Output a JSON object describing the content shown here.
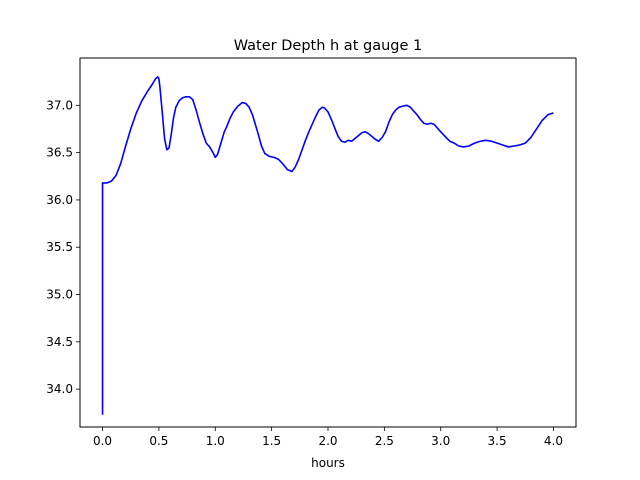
{
  "chart_data": {
    "type": "line",
    "title": "Water Depth h at gauge 1",
    "xlabel": "hours",
    "ylabel": "",
    "xlim": [
      -0.2,
      4.2
    ],
    "ylim": [
      33.6,
      37.5
    ],
    "grid": false,
    "xticks": [
      "0.0",
      "0.5",
      "1.0",
      "1.5",
      "2.0",
      "2.5",
      "3.0",
      "3.5",
      "4.0"
    ],
    "yticks": [
      "34.0",
      "34.5",
      "35.0",
      "35.5",
      "36.0",
      "36.5",
      "37.0"
    ],
    "series": [
      {
        "color": "#0000ff",
        "x": [
          0.0,
          0.0,
          0.01,
          0.04,
          0.08,
          0.12,
          0.16,
          0.2,
          0.25,
          0.3,
          0.35,
          0.4,
          0.44,
          0.47,
          0.49,
          0.5,
          0.51,
          0.53,
          0.55,
          0.57,
          0.59,
          0.61,
          0.63,
          0.65,
          0.68,
          0.71,
          0.74,
          0.77,
          0.8,
          0.83,
          0.86,
          0.89,
          0.92,
          0.95,
          0.98,
          1.0,
          1.02,
          1.05,
          1.08,
          1.1,
          1.13,
          1.16,
          1.2,
          1.24,
          1.27,
          1.3,
          1.33,
          1.36,
          1.38,
          1.41,
          1.44,
          1.48,
          1.52,
          1.56,
          1.6,
          1.64,
          1.68,
          1.71,
          1.74,
          1.77,
          1.8,
          1.83,
          1.86,
          1.89,
          1.92,
          1.95,
          1.97,
          2.0,
          2.03,
          2.06,
          2.09,
          2.12,
          2.15,
          2.18,
          2.21,
          2.24,
          2.27,
          2.3,
          2.33,
          2.36,
          2.39,
          2.42,
          2.45,
          2.48,
          2.51,
          2.54,
          2.57,
          2.6,
          2.63,
          2.66,
          2.7,
          2.73,
          2.76,
          2.79,
          2.82,
          2.85,
          2.88,
          2.91,
          2.94,
          2.97,
          3.0,
          3.04,
          3.08,
          3.12,
          3.16,
          3.2,
          3.25,
          3.3,
          3.35,
          3.4,
          3.45,
          3.5,
          3.55,
          3.6,
          3.65,
          3.7,
          3.75,
          3.8,
          3.85,
          3.9,
          3.95,
          4.0
        ],
        "y": [
          33.73,
          36.18,
          36.18,
          36.18,
          36.2,
          36.26,
          36.38,
          36.55,
          36.75,
          36.92,
          37.05,
          37.15,
          37.22,
          37.28,
          37.3,
          37.28,
          37.18,
          36.92,
          36.65,
          36.53,
          36.55,
          36.7,
          36.87,
          36.98,
          37.05,
          37.08,
          37.09,
          37.09,
          37.06,
          36.95,
          36.82,
          36.7,
          36.6,
          36.56,
          36.5,
          36.45,
          36.48,
          36.6,
          36.72,
          36.77,
          36.86,
          36.93,
          36.99,
          37.03,
          37.02,
          36.98,
          36.9,
          36.78,
          36.7,
          36.57,
          36.49,
          36.46,
          36.45,
          36.43,
          36.38,
          36.32,
          36.3,
          36.35,
          36.43,
          36.53,
          36.63,
          36.72,
          36.8,
          36.88,
          36.95,
          36.98,
          36.97,
          36.93,
          36.85,
          36.76,
          36.67,
          36.62,
          36.61,
          36.63,
          36.62,
          36.65,
          36.68,
          36.71,
          36.72,
          36.7,
          36.67,
          36.64,
          36.62,
          36.66,
          36.72,
          36.82,
          36.9,
          36.95,
          36.98,
          36.99,
          37.0,
          36.98,
          36.94,
          36.9,
          36.85,
          36.81,
          36.8,
          36.81,
          36.8,
          36.76,
          36.72,
          36.67,
          36.62,
          36.6,
          36.57,
          36.56,
          36.57,
          36.6,
          36.62,
          36.63,
          36.62,
          36.6,
          36.58,
          36.56,
          36.57,
          36.58,
          36.6,
          36.66,
          36.75,
          36.84,
          36.9,
          36.92
        ]
      }
    ]
  }
}
